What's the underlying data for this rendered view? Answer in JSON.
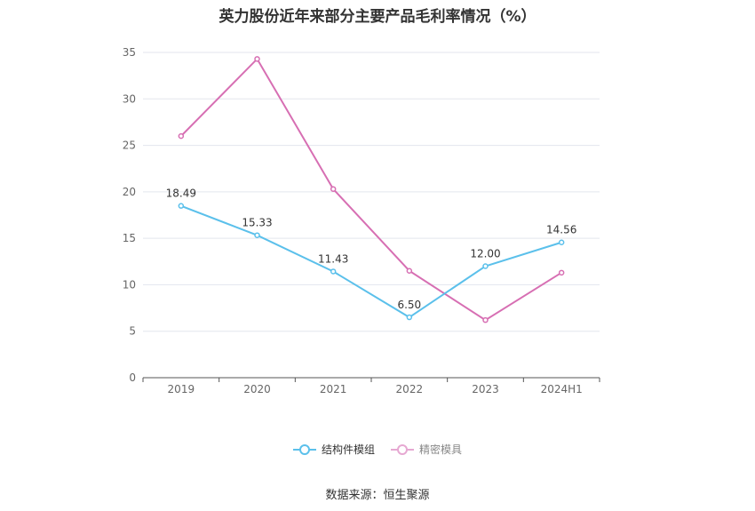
{
  "source_label": "数据来源：恒生聚源",
  "chart_data": {
    "type": "line",
    "title": "英力股份近年来部分主要产品毛利率情况（%）",
    "categories": [
      "2019",
      "2020",
      "2021",
      "2022",
      "2023",
      "2024H1"
    ],
    "ylim": [
      0,
      35
    ],
    "yticks": [
      0,
      5,
      10,
      15,
      20,
      25,
      30,
      35
    ],
    "grid": true,
    "legend_position": "bottom",
    "series": [
      {
        "name": "结构件模组",
        "color": "#5bc0eb",
        "values": [
          18.49,
          15.33,
          11.43,
          6.5,
          12.0,
          14.56
        ],
        "labels": [
          "18.49",
          "15.33",
          "11.43",
          "6.50",
          "12.00",
          "14.56"
        ]
      },
      {
        "name": "精密模具",
        "color": "#d76fb3",
        "values": [
          26.0,
          34.3,
          20.3,
          11.5,
          6.2,
          11.3
        ]
      }
    ]
  }
}
